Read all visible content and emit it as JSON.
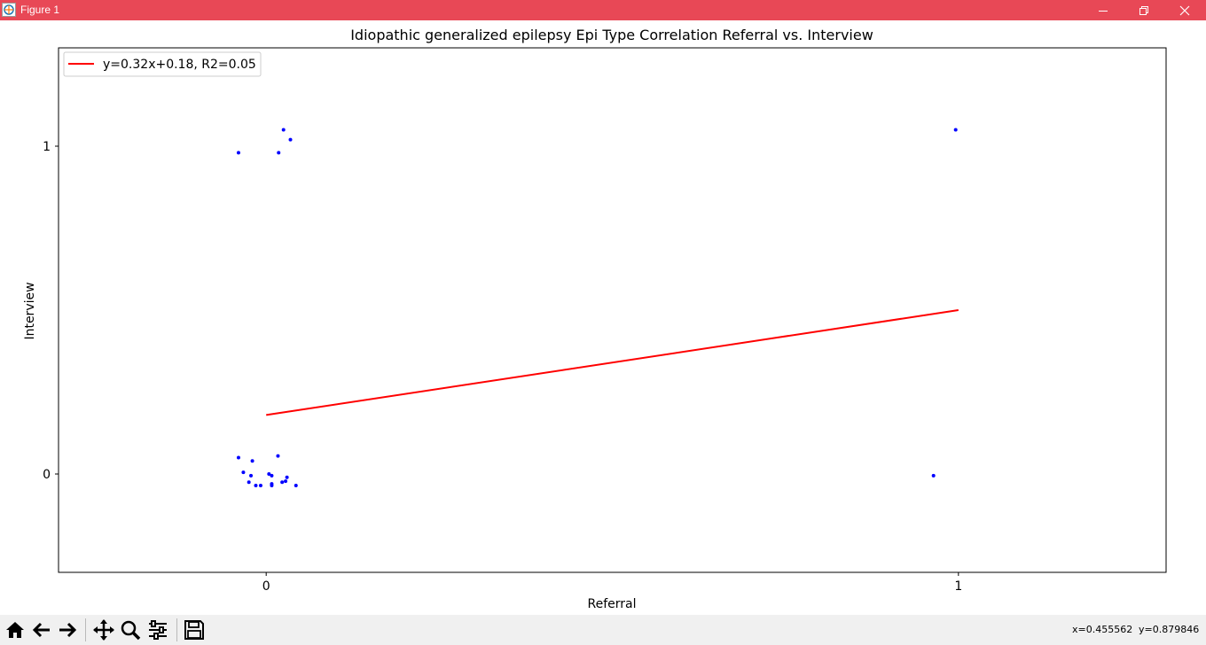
{
  "window": {
    "title": "Figure 1",
    "accent_color": "#e84856",
    "controls": [
      "minimize-icon",
      "restore-icon",
      "close-icon"
    ]
  },
  "toolbar": {
    "tools": [
      "home-icon",
      "back-icon",
      "forward-icon",
      "pan-icon",
      "zoom-icon",
      "configure-subplots-icon",
      "save-icon"
    ],
    "coord_x": "x=0.455562",
    "coord_y": "y=0.879846"
  },
  "chart_data": {
    "type": "scatter",
    "title": "Idiopathic generalized epilepsy Epi Type Correlation Referral vs. Interview",
    "xlabel": "Referral",
    "ylabel": "Interview",
    "xlim": [
      -0.3,
      1.3
    ],
    "ylim": [
      -0.3,
      1.3
    ],
    "xticks": [
      0,
      1
    ],
    "xtick_labels": [
      "0",
      "1"
    ],
    "yticks": [
      0,
      1
    ],
    "ytick_labels": [
      "0",
      "1"
    ],
    "grid": false,
    "legend_placement": "upper-left",
    "series": [
      {
        "kind": "points",
        "color": "#0000ff",
        "x": [
          -0.04,
          0.025,
          0.035,
          0.018,
          -0.04,
          -0.033,
          -0.02,
          -0.022,
          -0.025,
          -0.015,
          -0.008,
          0.004,
          0.008,
          0.008,
          0.008,
          0.017,
          0.023,
          0.028,
          0.03,
          0.043,
          0.996,
          0.964
        ],
        "y": [
          0.98,
          1.05,
          1.02,
          0.98,
          0.05,
          0.005,
          0.04,
          -0.005,
          -0.025,
          -0.035,
          -0.035,
          0.0,
          -0.005,
          -0.03,
          -0.035,
          0.055,
          -0.025,
          -0.022,
          -0.01,
          -0.035,
          1.05,
          -0.005
        ]
      },
      {
        "kind": "line",
        "name": "y=0.32x+0.18, R2=0.05",
        "color": "#ff0000",
        "x": [
          0,
          1
        ],
        "y": [
          0.18,
          0.5
        ]
      }
    ]
  }
}
